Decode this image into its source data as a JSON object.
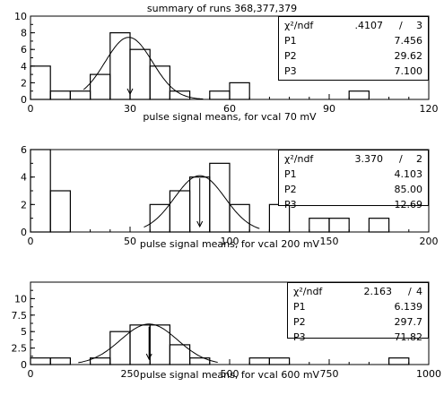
{
  "title": "summary of runs 368,377,379",
  "chart_data": [
    {
      "type": "histogram",
      "xlabel": "pulse signal means, for vcal 70 mV",
      "xlim": [
        0,
        120
      ],
      "ylim": [
        0,
        10
      ],
      "xticks": [
        0,
        30,
        60,
        90,
        120
      ],
      "yticks": [
        0,
        2,
        4,
        6,
        8,
        10
      ],
      "bin_edges": [
        0,
        6,
        12,
        18,
        24,
        30,
        36,
        42,
        48,
        54,
        60,
        66,
        72,
        78,
        84,
        90,
        96,
        102,
        108,
        114,
        120
      ],
      "counts": [
        4,
        1,
        1,
        3,
        8,
        6,
        4,
        1,
        0,
        1,
        2,
        0,
        0,
        0,
        0,
        0,
        1,
        0,
        0,
        0
      ],
      "fit": {
        "function": "gaussian",
        "P1": 7.456,
        "P2": 29.62,
        "P3": 7.1,
        "x_range": [
          16,
          52
        ]
      },
      "mean_arrow": 30,
      "stats": {
        "chi_label": "χ²/ndf",
        "chi": ".4107",
        "ndf": "3",
        "P1": "7.456",
        "P2": "29.62",
        "P3": "7.100"
      }
    },
    {
      "type": "histogram",
      "xlabel": "pulse signal means, for vcal 200 mV",
      "xlim": [
        0,
        200
      ],
      "ylim": [
        0,
        6
      ],
      "xticks": [
        0,
        50,
        100,
        150,
        200
      ],
      "yticks": [
        0,
        2,
        4,
        6
      ],
      "bin_edges": [
        0,
        10,
        20,
        30,
        40,
        50,
        60,
        70,
        80,
        90,
        100,
        110,
        120,
        130,
        140,
        150,
        160,
        170,
        180,
        190,
        200
      ],
      "counts": [
        6,
        3,
        0,
        0,
        0,
        0,
        2,
        3,
        4,
        5,
        2,
        0,
        2,
        0,
        1,
        1,
        0,
        1,
        0,
        0
      ],
      "fit": {
        "function": "gaussian",
        "P1": 4.103,
        "P2": 85.0,
        "P3": 12.69,
        "x_range": [
          57,
          115
        ]
      },
      "mean_arrow": 85,
      "stats": {
        "chi_label": "χ²/ndf",
        "chi": "3.370",
        "ndf": "2",
        "P1": "4.103",
        "P2": "85.00",
        "P3": "12.69"
      }
    },
    {
      "type": "histogram",
      "xlabel": "pulse signal means, for vcal 600 mV",
      "xlim": [
        0,
        1000
      ],
      "ylim": [
        0,
        12.5
      ],
      "xticks": [
        0,
        250,
        500,
        750,
        1000
      ],
      "yticks": [
        0,
        2.5,
        5,
        7.5,
        10
      ],
      "bin_edges": [
        0,
        50,
        100,
        150,
        200,
        250,
        300,
        350,
        400,
        450,
        500,
        550,
        600,
        650,
        700,
        750,
        800,
        850,
        900,
        950,
        1000
      ],
      "counts": [
        1,
        1,
        0,
        1,
        5,
        6,
        6,
        3,
        1,
        0,
        0,
        1,
        1,
        0,
        0,
        0,
        0,
        0,
        1,
        0
      ],
      "fit": {
        "function": "gaussian",
        "P1": 6.139,
        "P2": 297.7,
        "P3": 71.82,
        "x_range": [
          120,
          470
        ]
      },
      "mean_arrow": 297.7,
      "stats": {
        "chi_label": "χ²/ndf",
        "chi": "2.163",
        "ndf": "4",
        "P1": "6.139",
        "P2": "297.7",
        "P3": "71.82"
      }
    }
  ]
}
